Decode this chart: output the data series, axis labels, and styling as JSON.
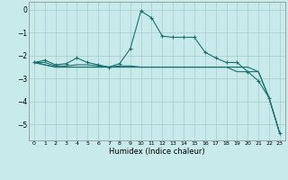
{
  "title": "",
  "xlabel": "Humidex (Indice chaleur)",
  "bg_color": "#c8eaea",
  "line_color": "#1a7070",
  "grid_color": "#a8cccc",
  "xlim": [
    -0.5,
    23.5
  ],
  "ylim": [
    -5.7,
    0.35
  ],
  "yticks": [
    0,
    -1,
    -2,
    -3,
    -4,
    -5
  ],
  "xticks": [
    0,
    1,
    2,
    3,
    4,
    5,
    6,
    7,
    8,
    9,
    10,
    11,
    12,
    13,
    14,
    15,
    16,
    17,
    18,
    19,
    20,
    21,
    22,
    23
  ],
  "line1_x": [
    0,
    1,
    2,
    3,
    4,
    5,
    6,
    7,
    8,
    9,
    10,
    11,
    12,
    13,
    14,
    15,
    16,
    17,
    18,
    19,
    20,
    21,
    22,
    23
  ],
  "line1_y": [
    -2.3,
    -2.2,
    -2.4,
    -2.35,
    -2.1,
    -2.3,
    -2.4,
    -2.5,
    -2.35,
    -1.7,
    -0.05,
    -0.35,
    -1.15,
    -1.2,
    -1.2,
    -1.2,
    -1.85,
    -2.1,
    -2.3,
    -2.3,
    -2.7,
    -3.1,
    -3.85,
    -5.4
  ],
  "line2_x": [
    0,
    1,
    2,
    3,
    4,
    5,
    6,
    7,
    8,
    9,
    10,
    11,
    12,
    13,
    14,
    15,
    16,
    17,
    18,
    19,
    20,
    21,
    22,
    23
  ],
  "line2_y": [
    -2.3,
    -2.4,
    -2.5,
    -2.5,
    -2.5,
    -2.5,
    -2.5,
    -2.5,
    -2.5,
    -2.5,
    -2.5,
    -2.5,
    -2.5,
    -2.5,
    -2.5,
    -2.5,
    -2.5,
    -2.5,
    -2.5,
    -2.5,
    -2.5,
    -2.7,
    -3.85,
    -5.4
  ],
  "line3_x": [
    0,
    1,
    2,
    3,
    4,
    5,
    6,
    7,
    8,
    9,
    10,
    11,
    12,
    13,
    14,
    15,
    16,
    17,
    18,
    19,
    20,
    21,
    22,
    23
  ],
  "line3_y": [
    -2.3,
    -2.4,
    -2.5,
    -2.5,
    -2.5,
    -2.5,
    -2.5,
    -2.5,
    -2.5,
    -2.5,
    -2.5,
    -2.5,
    -2.5,
    -2.5,
    -2.5,
    -2.5,
    -2.5,
    -2.5,
    -2.5,
    -2.7,
    -2.7,
    -2.7,
    -3.85,
    -5.4
  ],
  "line4_x": [
    0,
    1,
    2,
    3,
    4,
    5,
    6,
    7,
    8,
    9,
    10,
    11,
    12,
    13,
    14,
    15,
    16,
    17,
    18,
    19,
    20
  ],
  "line4_y": [
    -2.3,
    -2.3,
    -2.45,
    -2.45,
    -2.4,
    -2.4,
    -2.45,
    -2.5,
    -2.45,
    -2.45,
    -2.5,
    -2.5,
    -2.5,
    -2.5,
    -2.5,
    -2.5,
    -2.5,
    -2.5,
    -2.5,
    -2.5,
    -2.5
  ]
}
